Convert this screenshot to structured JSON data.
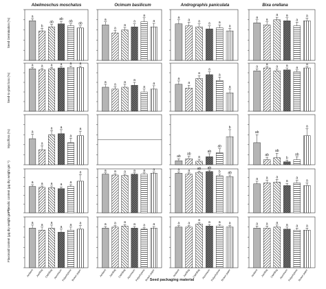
{
  "figure": {
    "xlabel": "Seed packaging material",
    "columns": [
      "Abelmoschus moschatus",
      "Ocimum basilicum",
      "Andrographis paniculata",
      "Bixa orellana"
    ],
    "rows": [
      "Seed Germination (%)",
      "Seed-to-plant loss (%)",
      "Mycoflora (%)",
      "Phenolic content (µg dry weight gm⁻¹)",
      "Flavonoid content (µg dry weight gm⁻¹)"
    ],
    "categories": [
      "Ambient",
      "JuteBag",
      "ClothBag",
      "Aluminium",
      "Polyethylene",
      "Brown paper"
    ]
  },
  "chart_data": [
    {
      "type": "bar",
      "row": 0,
      "col": 0,
      "values": [
        78,
        58,
        66,
        72,
        68,
        64
      ],
      "errors": [
        4,
        5,
        5,
        5,
        4,
        4
      ],
      "letters": [
        "a",
        "b",
        "ab",
        "ab",
        "ab",
        "ab"
      ],
      "ylim": [
        0,
        100
      ]
    },
    {
      "type": "bar",
      "row": 0,
      "col": 1,
      "values": [
        70,
        54,
        60,
        66,
        76,
        66
      ],
      "errors": [
        6,
        5,
        5,
        6,
        8,
        7
      ],
      "letters": [
        "a",
        "a",
        "a",
        "a",
        "a",
        "a"
      ],
      "ylim": [
        0,
        100
      ]
    },
    {
      "type": "bar",
      "row": 0,
      "col": 2,
      "values": [
        72,
        68,
        66,
        62,
        64,
        58
      ],
      "errors": [
        8,
        7,
        6,
        6,
        6,
        5
      ],
      "letters": [
        "a",
        "a",
        "a",
        "a",
        "a",
        "a"
      ],
      "ylim": [
        0,
        100
      ]
    },
    {
      "type": "bar",
      "row": 0,
      "col": 3,
      "values": [
        74,
        70,
        80,
        78,
        68,
        78
      ],
      "errors": [
        6,
        6,
        5,
        6,
        7,
        5
      ],
      "letters": [
        "a",
        "a",
        "a",
        "a",
        "a",
        "a"
      ],
      "ylim": [
        0,
        100
      ]
    },
    {
      "type": "bar",
      "row": 1,
      "col": 0,
      "values": [
        88,
        86,
        88,
        90,
        91,
        91
      ],
      "errors": [
        3,
        3,
        3,
        3,
        3,
        3
      ],
      "letters": [
        "a",
        "a",
        "a",
        "a",
        "a",
        "a"
      ],
      "ylim": [
        0,
        100
      ]
    },
    {
      "type": "bar",
      "row": 1,
      "col": 1,
      "values": [
        50,
        46,
        50,
        54,
        40,
        46
      ],
      "errors": [
        6,
        5,
        6,
        6,
        6,
        7
      ],
      "letters": [
        "a",
        "a",
        "a",
        "a",
        "a",
        "a"
      ],
      "ylim": [
        0,
        100
      ]
    },
    {
      "type": "bar",
      "row": 1,
      "col": 2,
      "values": [
        56,
        48,
        68,
        76,
        64,
        38
      ],
      "errors": [
        7,
        6,
        6,
        6,
        7,
        8
      ],
      "letters": [
        "a",
        "a",
        "a",
        "a",
        "a",
        "a"
      ],
      "ylim": [
        0,
        100
      ]
    },
    {
      "type": "bar",
      "row": 1,
      "col": 3,
      "values": [
        84,
        90,
        84,
        86,
        82,
        90
      ],
      "errors": [
        4,
        3,
        4,
        4,
        4,
        3
      ],
      "letters": [
        "a",
        "a",
        "a",
        "a",
        "a",
        "a"
      ],
      "ylim": [
        0,
        100
      ]
    },
    {
      "type": "bar",
      "row": 2,
      "col": 0,
      "values": [
        52,
        30,
        60,
        62,
        44,
        58
      ],
      "errors": [
        9,
        8,
        8,
        8,
        9,
        9
      ],
      "letters": [
        "a",
        "a",
        "a",
        "a",
        "a",
        "a"
      ],
      "ylim": [
        0,
        100
      ]
    },
    {
      "type": "bar",
      "row": 2,
      "col": 1,
      "values": [
        0,
        0,
        0,
        0,
        0,
        0
      ],
      "errors": [
        0,
        0,
        0,
        0,
        0,
        0
      ],
      "letters": [
        "",
        "",
        "",
        "",
        "",
        ""
      ],
      "ylim": [
        0,
        100
      ],
      "refline": 50
    },
    {
      "type": "bar",
      "row": 2,
      "col": 2,
      "values": [
        8,
        12,
        7,
        16,
        24,
        56
      ],
      "errors": [
        4,
        5,
        4,
        6,
        8,
        14
      ],
      "letters": [
        "ab",
        "ab",
        "a",
        "ab",
        "ab",
        "b"
      ],
      "ylim": [
        0,
        100
      ]
    },
    {
      "type": "bar",
      "row": 2,
      "col": 3,
      "values": [
        44,
        10,
        14,
        6,
        10,
        58
      ],
      "errors": [
        16,
        5,
        9,
        3,
        6,
        14
      ],
      "letters": [
        "ab",
        "ab",
        "ab",
        "b",
        "ab",
        "a"
      ],
      "ylim": [
        0,
        100
      ]
    },
    {
      "type": "bar",
      "row": 3,
      "col": 0,
      "values": [
        60,
        58,
        57,
        55,
        60,
        72
      ],
      "errors": [
        4,
        3,
        4,
        4,
        4,
        15
      ],
      "letters": [
        "a",
        "a",
        "a",
        "a",
        "a",
        "a"
      ],
      "ylim": [
        0,
        100
      ]
    },
    {
      "type": "bar",
      "row": 3,
      "col": 1,
      "values": [
        88,
        86,
        85,
        88,
        88,
        90
      ],
      "errors": [
        3,
        3,
        3,
        3,
        3,
        3
      ],
      "letters": [
        "a",
        "a",
        "a",
        "a",
        "a",
        "a"
      ],
      "ylim": [
        0,
        100
      ]
    },
    {
      "type": "bar",
      "row": 3,
      "col": 2,
      "values": [
        90,
        88,
        92,
        94,
        84,
        82
      ],
      "errors": [
        3,
        3,
        3,
        3,
        4,
        4
      ],
      "letters": [
        "a",
        "a",
        "ab",
        "ab",
        "b",
        "ab"
      ],
      "ylim": [
        0,
        100
      ]
    },
    {
      "type": "bar",
      "row": 3,
      "col": 3,
      "values": [
        66,
        68,
        70,
        62,
        68,
        62
      ],
      "errors": [
        6,
        6,
        6,
        5,
        6,
        6
      ],
      "letters": [
        "a",
        "a",
        "a",
        "a",
        "a",
        "a"
      ],
      "ylim": [
        0,
        100
      ]
    },
    {
      "type": "bar",
      "row": 4,
      "col": 0,
      "values": [
        78,
        74,
        78,
        70,
        74,
        76
      ],
      "errors": [
        6,
        6,
        6,
        6,
        6,
        7
      ],
      "letters": [
        "a",
        "a",
        "a",
        "a",
        "a",
        "a"
      ],
      "ylim": [
        0,
        100
      ]
    },
    {
      "type": "bar",
      "row": 4,
      "col": 1,
      "values": [
        78,
        80,
        82,
        78,
        76,
        78
      ],
      "errors": [
        3,
        3,
        3,
        3,
        3,
        3
      ],
      "letters": [
        "a",
        "a",
        "a",
        "a",
        "a",
        "a"
      ],
      "ylim": [
        0,
        100
      ]
    },
    {
      "type": "bar",
      "row": 4,
      "col": 2,
      "values": [
        80,
        80,
        86,
        82,
        82,
        80
      ],
      "errors": [
        3,
        3,
        3,
        3,
        3,
        3
      ],
      "letters": [
        "a",
        "a",
        "a",
        "a",
        "a",
        "a"
      ],
      "ylim": [
        0,
        100
      ]
    },
    {
      "type": "bar",
      "row": 4,
      "col": 3,
      "values": [
        78,
        78,
        80,
        76,
        74,
        74
      ],
      "errors": [
        4,
        4,
        4,
        4,
        4,
        4
      ],
      "letters": [
        "a",
        "a",
        "a",
        "a",
        "a",
        "a"
      ],
      "ylim": [
        0,
        100
      ]
    }
  ]
}
